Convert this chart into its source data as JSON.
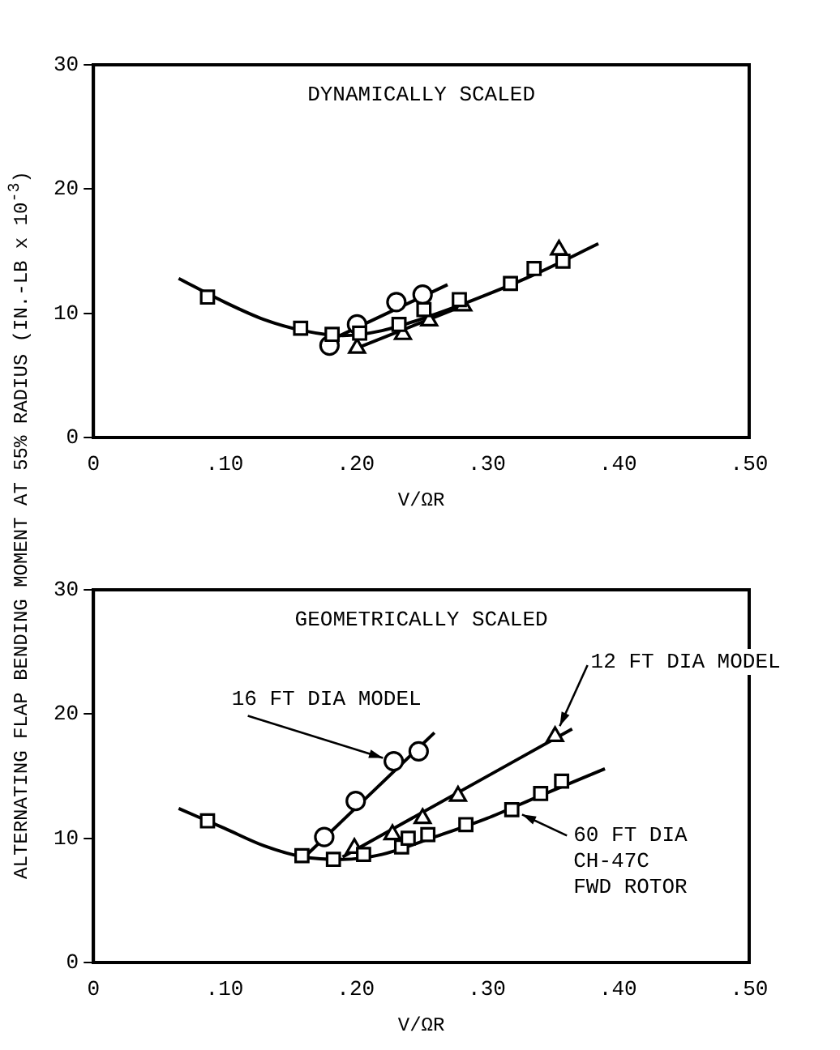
{
  "chart_data": [
    {
      "type": "scatter",
      "title": "DYNAMICALLY SCALED",
      "xlabel": "V/ΩR",
      "ylabel": "ALTERNATING FLAP BENDING MOMENT AT 55% RADIUS (IN.-LB x 10$^{-3}$)",
      "xlim": [
        0,
        0.5
      ],
      "xticks": [
        0,
        {
          "value": 0.1,
          "label": ".10"
        },
        {
          "value": 0.2,
          "label": ".20"
        },
        {
          "value": 0.3,
          "label": ".30"
        },
        {
          "value": 0.4,
          "label": ".40"
        },
        {
          "value": 0.5,
          "label": ".50"
        }
      ],
      "ylim": [
        0,
        30
      ],
      "yticks": [
        0,
        10,
        20,
        30
      ],
      "grid": false,
      "legend": false,
      "series": [
        {
          "type": "line",
          "marker": "none",
          "color": "#000000",
          "x": [
            0.065,
            0.1,
            0.13,
            0.16,
            0.19,
            0.22,
            0.26,
            0.3,
            0.34,
            0.385
          ],
          "values": [
            12.8,
            10.9,
            9.5,
            8.6,
            8.2,
            8.6,
            9.9,
            11.5,
            13.3,
            15.6
          ]
        },
        {
          "type": "line",
          "marker": "none",
          "color": "#000000",
          "x": [
            0.18,
            0.27
          ],
          "values": [
            7.8,
            12.3
          ]
        },
        {
          "type": "line",
          "marker": "none",
          "color": "#000000",
          "x": [
            0.201,
            0.282
          ],
          "values": [
            7.2,
            10.6
          ]
        },
        {
          "marker": "square",
          "color": "#000000",
          "x": [
            0.087,
            0.158,
            0.182,
            0.203,
            0.233,
            0.252,
            0.279,
            0.318,
            0.336,
            0.358
          ],
          "values": [
            11.3,
            8.8,
            8.3,
            8.4,
            9.1,
            10.3,
            11.1,
            12.4,
            13.6,
            14.2
          ]
        },
        {
          "marker": "circle",
          "color": "#000000",
          "x": [
            0.18,
            0.201,
            0.231,
            0.251
          ],
          "values": [
            7.4,
            9.1,
            10.9,
            11.5
          ]
        },
        {
          "marker": "triangle",
          "color": "#000000",
          "x": [
            0.201,
            0.236,
            0.256,
            0.282,
            0.355
          ],
          "values": [
            7.2,
            8.3,
            9.4,
            10.6,
            15.1
          ]
        }
      ]
    },
    {
      "type": "scatter",
      "title": "GEOMETRICALLY SCALED",
      "xlabel": "V/ΩR",
      "xlim": [
        0,
        0.5
      ],
      "xticks": [
        0,
        {
          "value": 0.1,
          "label": ".10"
        },
        {
          "value": 0.2,
          "label": ".20"
        },
        {
          "value": 0.3,
          "label": ".30"
        },
        {
          "value": 0.4,
          "label": ".40"
        },
        {
          "value": 0.5,
          "label": ".50"
        }
      ],
      "ylim": [
        0,
        30
      ],
      "yticks": [
        0,
        10,
        20,
        30
      ],
      "grid": false,
      "legend": false,
      "annotations": [
        {
          "text": "16 FT DIA MODEL",
          "x": 0.229,
          "y": 16.2
        },
        {
          "text": "12 FT DIA MODEL",
          "x": 0.352,
          "y": 18.2
        },
        {
          "text": "60 FT DIA\nCH-47C\nFWD ROTOR",
          "x": 0.319,
          "y": 12.3
        }
      ],
      "series": [
        {
          "type": "line",
          "marker": "none",
          "color": "#000000",
          "x": [
            0.065,
            0.1,
            0.13,
            0.16,
            0.19,
            0.22,
            0.26,
            0.3,
            0.34,
            0.39
          ],
          "values": [
            12.4,
            10.8,
            9.4,
            8.5,
            8.3,
            8.7,
            10.1,
            11.6,
            13.4,
            15.6
          ]
        },
        {
          "type": "line",
          "marker": "none",
          "color": "#000000",
          "x": [
            0.16,
            0.26
          ],
          "values": [
            8.4,
            18.5
          ]
        },
        {
          "type": "line",
          "marker": "none",
          "color": "#000000",
          "x": [
            0.19,
            0.365
          ],
          "values": [
            8.5,
            18.8
          ]
        },
        {
          "marker": "square",
          "color": "#000000",
          "x": [
            0.087,
            0.159,
            0.183,
            0.206,
            0.235,
            0.24,
            0.255,
            0.284,
            0.319,
            0.341,
            0.357
          ],
          "values": [
            11.4,
            8.6,
            8.3,
            8.7,
            9.3,
            10,
            10.3,
            11.1,
            12.3,
            13.6,
            14.6
          ]
        },
        {
          "marker": "circle",
          "color": "#000000",
          "x": [
            0.176,
            0.2,
            0.229,
            0.248
          ],
          "values": [
            10.1,
            13,
            16.2,
            17
          ]
        },
        {
          "marker": "triangle",
          "color": "#000000",
          "x": [
            0.199,
            0.228,
            0.251,
            0.278,
            0.352
          ],
          "values": [
            9.2,
            10.3,
            11.6,
            13.4,
            18.2
          ]
        }
      ]
    }
  ]
}
